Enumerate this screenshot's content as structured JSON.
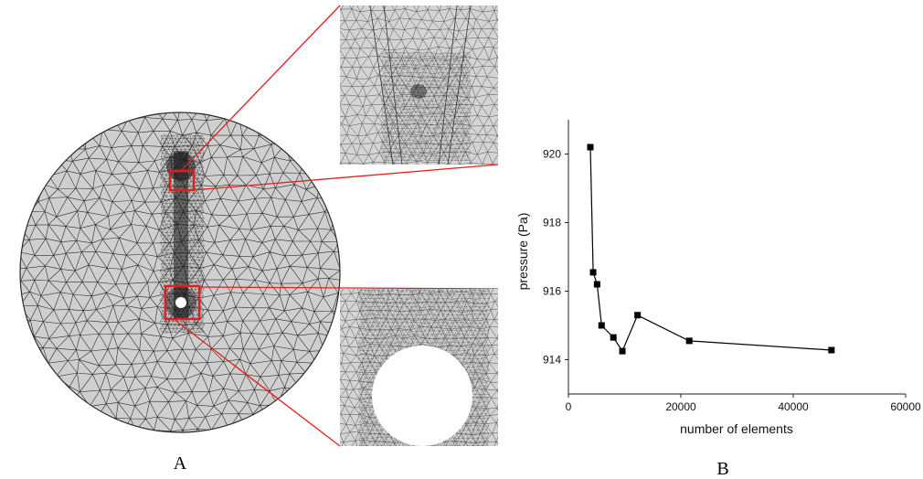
{
  "panel_labels": {
    "left": "A",
    "right": "B"
  },
  "colors": {
    "mesh_fill": "#cfcfcf",
    "mesh_line": "#2b2b2b",
    "highlight": "#e02020",
    "data": "#000000"
  },
  "chart_data": {
    "type": "line",
    "xlabel": "number of elements",
    "ylabel": "pressure (Pa)",
    "xlim": [
      0,
      60000
    ],
    "ylim": [
      913,
      921
    ],
    "xticks": [
      0,
      20000,
      40000,
      60000
    ],
    "yticks": [
      914,
      916,
      918,
      920
    ],
    "marker": "square",
    "series": [
      {
        "x": [
          3900,
          4400,
          5100,
          5900,
          8000,
          9600,
          12300,
          21500,
          46800
        ],
        "y": [
          920.2,
          916.55,
          916.2,
          915.0,
          914.65,
          914.25,
          915.3,
          914.55,
          914.28
        ]
      }
    ]
  }
}
